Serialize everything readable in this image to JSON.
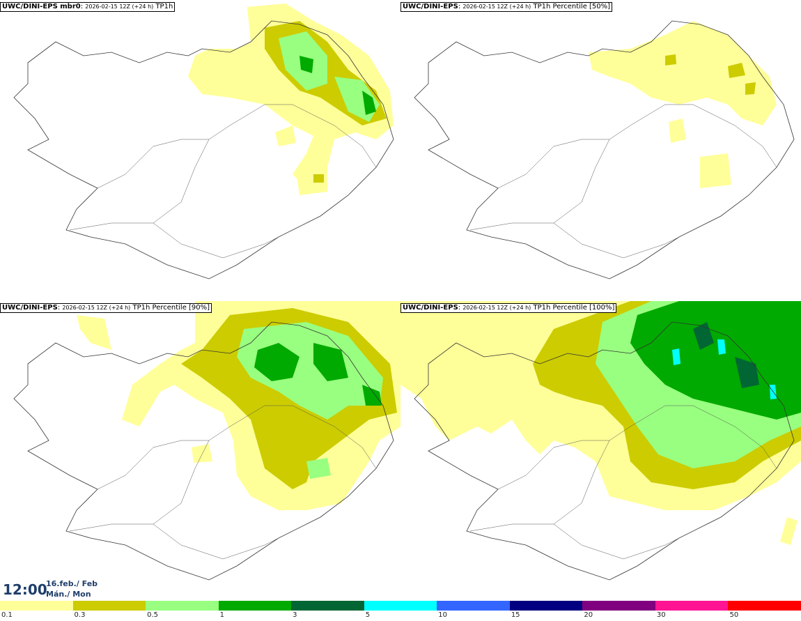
{
  "panels": [
    {
      "model": "UWC/DINI-EPS mbr0",
      "run": "2026-02-15 12Z (+24 h)",
      "field": "TP1h"
    },
    {
      "model": "UWC/DINI-EPS",
      "run": "2026-02-15 12Z (+24 h)",
      "field": "TP1h Percentile [50%]"
    },
    {
      "model": "UWC/DINI-EPS",
      "run": "2026-02-15 12Z (+24 h)",
      "field": "TP1h Percentile [90%]"
    },
    {
      "model": "UWC/DINI-EPS",
      "run": "2026-02-15 12Z (+24 h)",
      "field": "TP1h Percentile [100%]"
    }
  ],
  "time": {
    "clock": "12:00",
    "date_line": "16.feb./ Feb",
    "day_line": "Mán./ Mon"
  },
  "legend": {
    "colors": [
      "#ffff99",
      "#cccc00",
      "#99ff80",
      "#00aa00",
      "#006633",
      "#00ffff",
      "#3366ff",
      "#000080",
      "#800080",
      "#ff1493",
      "#ff0000"
    ],
    "labels": [
      "0.1",
      "0.3",
      "0.5",
      "1",
      "3",
      "5",
      "10",
      "15",
      "20",
      "30",
      "50"
    ]
  }
}
